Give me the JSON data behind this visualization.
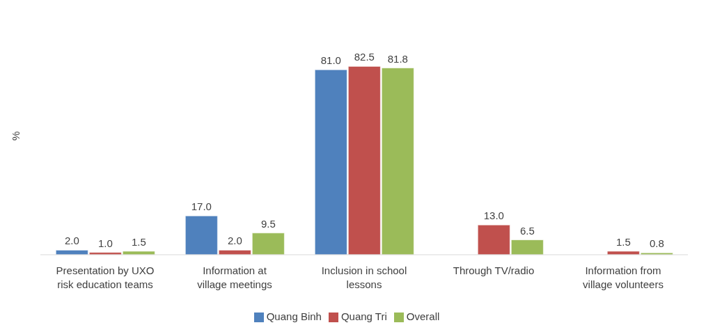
{
  "chart_data": {
    "type": "bar",
    "ylabel": "%",
    "categories": [
      "Presentation by UXO risk education teams",
      "Information at village meetings",
      "Inclusion in school lessons",
      "Through TV/radio",
      "Information from village volunteers"
    ],
    "series": [
      {
        "name": "Quang Binh",
        "color": "#4f81bd",
        "values": [
          2.0,
          17.0,
          81.0,
          0,
          0
        ],
        "value_labels": [
          "2.0",
          "17.0",
          "81.0",
          null,
          null
        ]
      },
      {
        "name": "Quang Tri",
        "color": "#c0504d",
        "values": [
          1.0,
          2.0,
          82.5,
          13.0,
          1.5
        ],
        "value_labels": [
          "1.0",
          "2.0",
          "82.5",
          "13.0",
          "1.5"
        ]
      },
      {
        "name": "Overall",
        "color": "#9bbb59",
        "values": [
          1.5,
          9.5,
          81.8,
          6.5,
          0.8
        ],
        "value_labels": [
          "1.5",
          "9.5",
          "81.8",
          "6.5",
          "0.8"
        ]
      }
    ],
    "legend": "bottom",
    "grid": false
  }
}
